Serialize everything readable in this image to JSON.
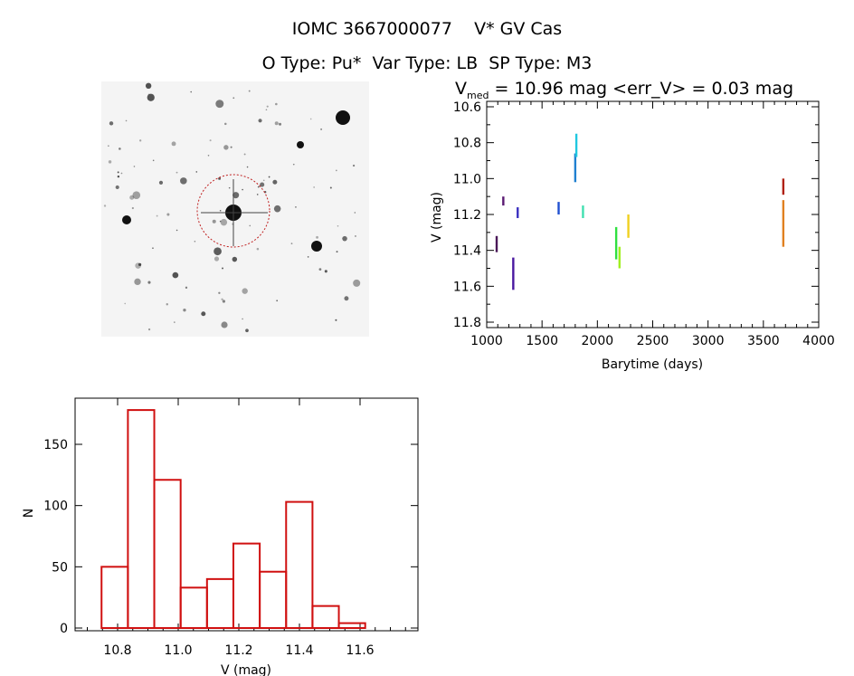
{
  "header": {
    "title": "IOMC 3667000077    V* GV Cas",
    "subtitle": "O Type: Pu*  Var Type: LB  SP Type: M3"
  },
  "chart_data": [
    {
      "type": "scatter",
      "title_prefix": "V",
      "title_sub": "med",
      "title_rest": " = 10.96 mag <err_V> = 0.03 mag",
      "xlabel": "Barytime (days)",
      "ylabel": "V (mag)",
      "xlim": [
        1000,
        4000
      ],
      "ylim": [
        10.6,
        11.8
      ],
      "y_inverted": true,
      "xticks": [
        "1000",
        "1500",
        "2000",
        "2500",
        "3000",
        "3500",
        "4000"
      ],
      "yticks": [
        "10.6",
        "10.8",
        "11.0",
        "11.2",
        "11.4",
        "11.6",
        "11.8"
      ],
      "segments": [
        {
          "t": 1090,
          "vmin": 11.32,
          "vmax": 11.41,
          "color": "#4a1858"
        },
        {
          "t": 1150,
          "vmin": 11.1,
          "vmax": 11.15,
          "color": "#5a1a72"
        },
        {
          "t": 1240,
          "vmin": 11.44,
          "vmax": 11.62,
          "color": "#4a18a0"
        },
        {
          "t": 1280,
          "vmin": 11.16,
          "vmax": 11.22,
          "color": "#3a30c0"
        },
        {
          "t": 1650,
          "vmin": 11.13,
          "vmax": 11.2,
          "color": "#2050d0"
        },
        {
          "t": 1800,
          "vmin": 10.86,
          "vmax": 11.02,
          "color": "#2080d0"
        },
        {
          "t": 1810,
          "vmin": 10.75,
          "vmax": 10.88,
          "color": "#20c8e0"
        },
        {
          "t": 1870,
          "vmin": 11.15,
          "vmax": 11.22,
          "color": "#40e0b0"
        },
        {
          "t": 2170,
          "vmin": 11.27,
          "vmax": 11.45,
          "color": "#30e040"
        },
        {
          "t": 2200,
          "vmin": 11.38,
          "vmax": 11.5,
          "color": "#a0f020"
        },
        {
          "t": 2280,
          "vmin": 11.2,
          "vmax": 11.33,
          "color": "#f0d020"
        },
        {
          "t": 3680,
          "vmin": 11.0,
          "vmax": 11.09,
          "color": "#b02010"
        },
        {
          "t": 3680,
          "vmin": 11.12,
          "vmax": 11.38,
          "color": "#e08020"
        }
      ]
    },
    {
      "type": "bar",
      "subtype": "histogram",
      "xlabel": "V (mag)",
      "ylabel": "N",
      "xlim": [
        10.66,
        11.79
      ],
      "ylim": [
        0,
        188
      ],
      "xticks": [
        "10.8",
        "11.0",
        "11.2",
        "11.4",
        "11.6"
      ],
      "yticks": [
        "0",
        "50",
        "100",
        "150"
      ],
      "bin_start": 10.747,
      "bin_width": 0.087,
      "values": [
        50,
        178,
        121,
        33,
        40,
        69,
        46,
        103,
        18,
        4
      ],
      "color": "#d01010"
    }
  ]
}
